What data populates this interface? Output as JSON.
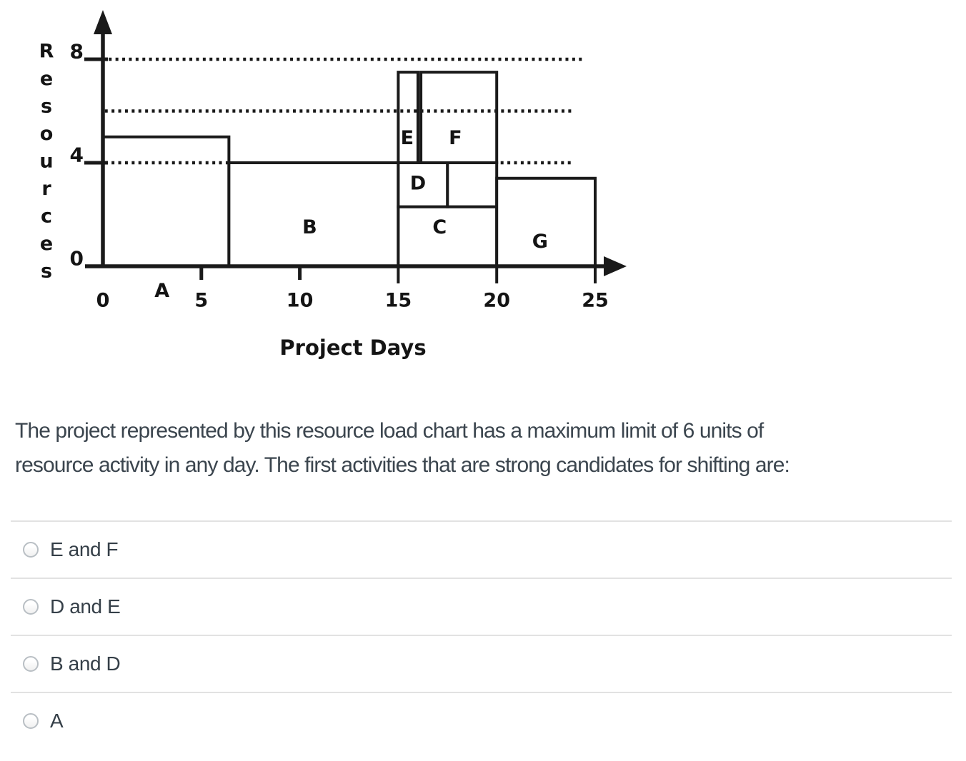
{
  "chart_data": {
    "type": "bar",
    "subtype": "resource-load-step-chart",
    "title": "",
    "xlabel": "Project Days",
    "ylabel": "Resources",
    "x_tick_labels": [
      0,
      5,
      10,
      15,
      20,
      25
    ],
    "y_tick_labels": [
      8,
      4,
      0
    ],
    "xlim": [
      0,
      26.5
    ],
    "ylim": [
      0,
      9.9
    ],
    "grid": false,
    "dotted_guide_lines": [
      {
        "level": 8,
        "from_day": 0.3,
        "to_day": 24.5
      },
      {
        "level": 6,
        "from_day": 0.1,
        "to_day": 23.8
      },
      {
        "level": 4,
        "from_day": 0.1,
        "to_day": 6.4
      },
      {
        "level": 4,
        "from_day": 20.2,
        "to_day": 23.9
      }
    ],
    "activities": [
      {
        "name": "A",
        "start_day": 0,
        "end_day": 6.4,
        "base_units": 0,
        "top_units": 5,
        "label_day": 3.0,
        "label_units": -0.95
      },
      {
        "name": "B",
        "start_day": 6.4,
        "end_day": 15,
        "base_units": 0,
        "top_units": 4,
        "label_day": 10.5,
        "label_units": 1.5
      },
      {
        "name": "C",
        "start_day": 15,
        "end_day": 20,
        "base_units": 0,
        "top_units": 2.3,
        "label_day": 17.1,
        "label_units": 1.5
      },
      {
        "name": "D",
        "start_day": 15,
        "end_day": 17.5,
        "base_units": 2.3,
        "top_units": 4,
        "label_day": 16.0,
        "label_units": 3.2
      },
      {
        "name": "",
        "start_day": 17.5,
        "end_day": 20,
        "base_units": 2.3,
        "top_units": 4,
        "label_day": 0,
        "label_units": 0
      },
      {
        "name": "E",
        "start_day": 15,
        "end_day": 16.0,
        "base_units": 4,
        "top_units": 7.5,
        "label_day": 15.45,
        "label_units": 4.95
      },
      {
        "name": "F",
        "start_day": 16.15,
        "end_day": 20,
        "base_units": 4,
        "top_units": 7.5,
        "label_day": 17.9,
        "label_units": 4.95
      },
      {
        "name": "G",
        "start_day": 20,
        "end_day": 25,
        "base_units": 0,
        "top_units": 3.4,
        "label_day": 22.2,
        "label_units": 0.95
      }
    ]
  },
  "question": {
    "lines": [
      "The project represented by this resource load chart has a maximum limit of 6 units of",
      "resource activity in any day. The first activities that are strong candidates for shifting are:"
    ]
  },
  "options": [
    {
      "label": "E and F",
      "selected": false
    },
    {
      "label": "D and E",
      "selected": false
    },
    {
      "label": "B and D",
      "selected": false
    },
    {
      "label": "A",
      "selected": false
    }
  ],
  "colors": {
    "chart_ink": "#1a1a1a",
    "question_text": "#3b454e",
    "option_text": "#353f48",
    "divider": "#e2e2e2",
    "radio_border": "#b9bfc4",
    "background": "#ffffff"
  }
}
